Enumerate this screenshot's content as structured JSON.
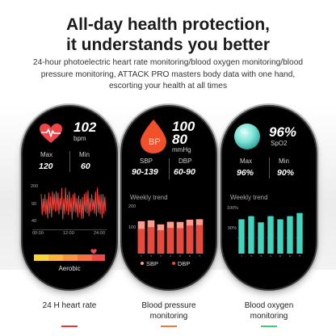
{
  "header": {
    "title_line1": "All-day health protection,",
    "title_line2": "it understands you better",
    "subtitle_line1": "24-hour photoelectric heart rate monitoring/blood oxygen monitoring/blood",
    "subtitle_line2": "pressure monitoring, ATTACK PRO masters body data with one hand,",
    "subtitle_line3": "escorting your health at all times"
  },
  "heart_rate_screen": {
    "value": "102",
    "unit": "bpm",
    "max_label": "Max",
    "max_value": "120",
    "min_label": "Min",
    "min_value": "60",
    "y_ticks": [
      "200",
      "90",
      "40"
    ],
    "x_ticks": [
      "00:00",
      "12:00",
      "24:00"
    ],
    "zone_label": "Aerobic",
    "colors": {
      "heart": "#f04448",
      "graph": "#e8483f"
    }
  },
  "blood_pressure_screen": {
    "icon_text": "BP",
    "value_top": "100",
    "value_bottom": "80",
    "unit": "mmHg",
    "sbp_label": "SBP",
    "sbp_range": "90-139",
    "dbp_label": "DBP",
    "dbp_range": "60-90",
    "trend_title": "Weekly trend",
    "y_ticks": [
      "200",
      "100"
    ],
    "legend_sbp": "SBP",
    "legend_dbp": "DBP",
    "colors": {
      "sbp": "#ff9b8a",
      "dbp": "#e84a3e",
      "icon": "#f0502a"
    }
  },
  "blood_oxygen_screen": {
    "icon_text": "O₂",
    "value": "96%",
    "unit": "SpO2",
    "max_label": "Max",
    "max_value": "96%",
    "min_label": "Min",
    "min_value": "90%",
    "trend_title": "Weekly trend",
    "y_ticks": [
      "100%",
      "90%"
    ],
    "colors": {
      "bars": "#3fd6c0",
      "icon": "#7fe3d6"
    }
  },
  "chart_data": [
    {
      "type": "bar",
      "title": "Weekly trend",
      "categories": [
        "1",
        "2",
        "3",
        "4",
        "5",
        "6",
        "7"
      ],
      "series": [
        {
          "name": "SBP",
          "values": [
            138,
            142,
            125,
            136,
            135,
            145,
            147
          ]
        },
        {
          "name": "DBP",
          "values": [
            106,
            113,
            100,
            110,
            109,
            120,
            122
          ]
        }
      ],
      "ylim": [
        0,
        200
      ],
      "legend": "bottom"
    },
    {
      "type": "bar",
      "title": "Weekly trend",
      "categories": [
        "1",
        "2",
        "3",
        "4",
        "5",
        "6",
        "7"
      ],
      "values": [
        96,
        97,
        95,
        97,
        96,
        97,
        98
      ],
      "ylim": [
        85,
        100
      ]
    }
  ],
  "captions": {
    "heart_rate": "24 H heart rate",
    "blood_pressure_line1": "Blood pressure",
    "blood_pressure_line2": "monitoring",
    "blood_oxygen_line1": "Blood oxygen",
    "blood_oxygen_line2": "monitoring",
    "underline_colors": [
      "#e8363a",
      "#f07b3a",
      "#3ccf7a"
    ]
  }
}
